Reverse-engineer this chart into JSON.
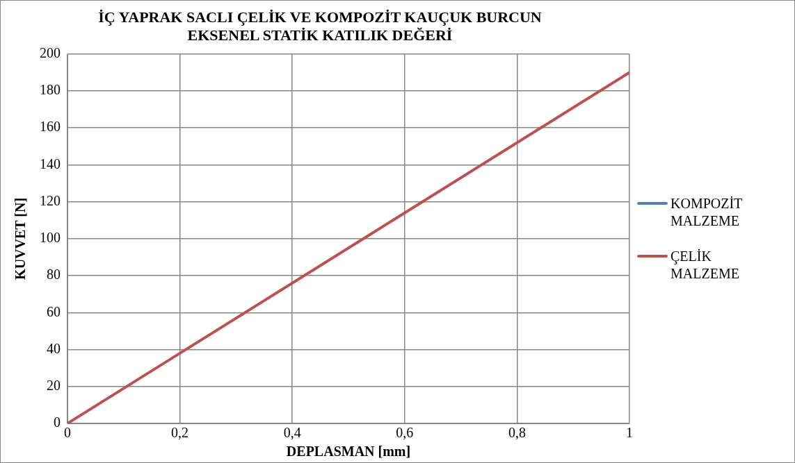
{
  "chart_data": {
    "type": "line",
    "title": "İÇ YAPRAK SACLI ÇELİK VE KOMPOZİT KAUÇUK BURCUN EKSENEL STATİK KATILIK DEĞERİ",
    "xlabel": "DEPLASMAN [mm]",
    "ylabel": "KUVVET [N]",
    "x": [
      0,
      1
    ],
    "series": [
      {
        "name": "KOMPOZİT MALZEME",
        "color": "#4f81bd",
        "values": [
          null,
          null
        ]
      },
      {
        "name": "ÇELİK MALZEME",
        "color": "#c0504d",
        "values": [
          0,
          190
        ]
      }
    ],
    "xlim": [
      0,
      1
    ],
    "xticks": [
      0,
      {
        "value": 0.2,
        "label": "0,2"
      },
      {
        "value": 0.4,
        "label": "0,4"
      },
      {
        "value": 0.6,
        "label": "0,6"
      },
      {
        "value": 0.8,
        "label": "0,8"
      },
      1
    ],
    "ylim": [
      0,
      200
    ],
    "yticks": [
      0,
      20,
      40,
      60,
      80,
      100,
      120,
      140,
      160,
      180,
      200
    ],
    "grid": true,
    "legend": "right",
    "marker": "none",
    "line_style": "solid"
  }
}
